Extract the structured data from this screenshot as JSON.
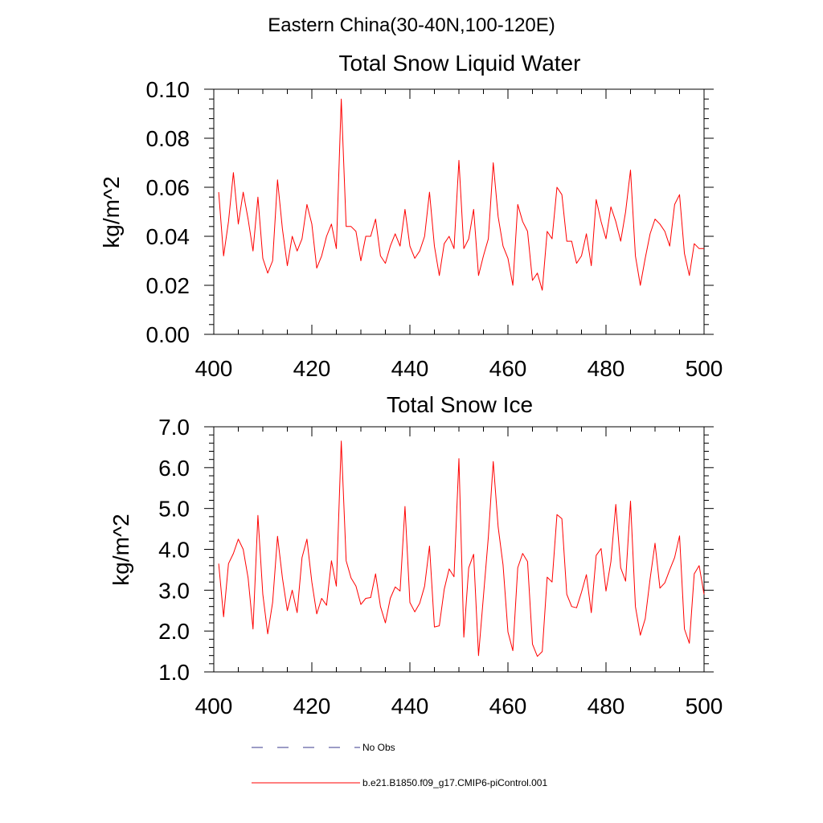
{
  "figure": {
    "title": "Eastern China(30-40N,100-120E)"
  },
  "legend": {
    "entries": [
      {
        "label": "No Obs",
        "style": "dashed",
        "color": "#3a3a8c"
      },
      {
        "label": "b.e21.B1850.f09_g17.CMIP6-piControl.001",
        "style": "solid",
        "color": "#ff0000"
      }
    ]
  },
  "chart_data": [
    {
      "type": "line",
      "title": "Total Snow Liquid Water",
      "xlabel": "",
      "ylabel": "kg/m^2",
      "xlim": [
        400,
        500
      ],
      "ylim": [
        0.0,
        0.1
      ],
      "xticks": [
        400,
        420,
        440,
        460,
        480,
        500
      ],
      "xtick_labels": [
        "400",
        "420",
        "440",
        "460",
        "480",
        "500"
      ],
      "yticks": [
        0.0,
        0.02,
        0.04,
        0.06,
        0.08,
        0.1
      ],
      "ytick_labels": [
        "0.00",
        "0.02",
        "0.04",
        "0.06",
        "0.08",
        "0.10"
      ],
      "grid": false,
      "series": [
        {
          "name": "b.e21.B1850.f09_g17.CMIP6-piControl.001",
          "color": "#ff0000",
          "x": [
            401,
            402,
            403,
            404,
            405,
            406,
            407,
            408,
            409,
            410,
            411,
            412,
            413,
            414,
            415,
            416,
            417,
            418,
            419,
            420,
            421,
            422,
            423,
            424,
            425,
            426,
            427,
            428,
            429,
            430,
            431,
            432,
            433,
            434,
            435,
            436,
            437,
            438,
            439,
            440,
            441,
            442,
            443,
            444,
            445,
            446,
            447,
            448,
            449,
            450,
            451,
            452,
            453,
            454,
            455,
            456,
            457,
            458,
            459,
            460,
            461,
            462,
            463,
            464,
            465,
            466,
            467,
            468,
            469,
            470,
            471,
            472,
            473,
            474,
            475,
            476,
            477,
            478,
            479,
            480,
            481,
            482,
            483,
            484,
            485,
            486,
            487,
            488,
            489,
            490,
            491,
            492,
            493,
            494,
            495,
            496,
            497,
            498,
            499,
            500
          ],
          "values": [
            0.058,
            0.032,
            0.046,
            0.066,
            0.045,
            0.058,
            0.047,
            0.034,
            0.056,
            0.031,
            0.025,
            0.03,
            0.063,
            0.043,
            0.028,
            0.04,
            0.034,
            0.039,
            0.053,
            0.045,
            0.027,
            0.032,
            0.04,
            0.045,
            0.035,
            0.096,
            0.044,
            0.044,
            0.042,
            0.03,
            0.04,
            0.04,
            0.047,
            0.032,
            0.029,
            0.036,
            0.041,
            0.036,
            0.051,
            0.036,
            0.031,
            0.034,
            0.04,
            0.058,
            0.036,
            0.024,
            0.037,
            0.04,
            0.035,
            0.071,
            0.035,
            0.039,
            0.051,
            0.024,
            0.032,
            0.039,
            0.07,
            0.048,
            0.036,
            0.031,
            0.02,
            0.053,
            0.046,
            0.042,
            0.022,
            0.025,
            0.018,
            0.042,
            0.039,
            0.06,
            0.057,
            0.038,
            0.038,
            0.029,
            0.032,
            0.041,
            0.028,
            0.055,
            0.046,
            0.039,
            0.052,
            0.046,
            0.038,
            0.05,
            0.067,
            0.032,
            0.02,
            0.031,
            0.041,
            0.047,
            0.045,
            0.042,
            0.036,
            0.053,
            0.057,
            0.033,
            0.024,
            0.037,
            0.035,
            0.035
          ]
        }
      ]
    },
    {
      "type": "line",
      "title": "Total Snow Ice",
      "xlabel": "",
      "ylabel": "kg/m^2",
      "xlim": [
        400,
        500
      ],
      "ylim": [
        1.0,
        7.0
      ],
      "xticks": [
        400,
        420,
        440,
        460,
        480,
        500
      ],
      "xtick_labels": [
        "400",
        "420",
        "440",
        "460",
        "480",
        "500"
      ],
      "yticks": [
        1.0,
        2.0,
        3.0,
        4.0,
        5.0,
        6.0,
        7.0
      ],
      "ytick_labels": [
        "1.0",
        "2.0",
        "3.0",
        "4.0",
        "5.0",
        "6.0",
        "7.0"
      ],
      "grid": false,
      "series": [
        {
          "name": "b.e21.B1850.f09_g17.CMIP6-piControl.001",
          "color": "#ff0000",
          "x": [
            401,
            402,
            403,
            404,
            405,
            406,
            407,
            408,
            409,
            410,
            411,
            412,
            413,
            414,
            415,
            416,
            417,
            418,
            419,
            420,
            421,
            422,
            423,
            424,
            425,
            426,
            427,
            428,
            429,
            430,
            431,
            432,
            433,
            434,
            435,
            436,
            437,
            438,
            439,
            440,
            441,
            442,
            443,
            444,
            445,
            446,
            447,
            448,
            449,
            450,
            451,
            452,
            453,
            454,
            455,
            456,
            457,
            458,
            459,
            460,
            461,
            462,
            463,
            464,
            465,
            466,
            467,
            468,
            469,
            470,
            471,
            472,
            473,
            474,
            475,
            476,
            477,
            478,
            479,
            480,
            481,
            482,
            483,
            484,
            485,
            486,
            487,
            488,
            489,
            490,
            491,
            492,
            493,
            494,
            495,
            496,
            497,
            498,
            499,
            500
          ],
          "values": [
            3.65,
            2.35,
            3.65,
            3.9,
            4.25,
            4.0,
            3.3,
            2.05,
            4.83,
            2.9,
            1.93,
            2.7,
            4.32,
            3.3,
            2.5,
            3.0,
            2.45,
            3.8,
            4.25,
            3.2,
            2.42,
            2.8,
            2.63,
            3.72,
            3.1,
            6.65,
            3.72,
            3.3,
            3.1,
            2.65,
            2.8,
            2.82,
            3.4,
            2.6,
            2.2,
            2.8,
            3.08,
            2.98,
            5.05,
            2.7,
            2.47,
            2.68,
            3.1,
            4.08,
            2.1,
            2.13,
            3.02,
            3.52,
            3.33,
            6.22,
            1.85,
            3.55,
            3.88,
            1.4,
            2.85,
            4.3,
            6.15,
            4.55,
            3.62,
            1.98,
            1.52,
            3.55,
            3.9,
            3.7,
            1.68,
            1.38,
            1.5,
            3.32,
            3.2,
            4.85,
            4.75,
            2.9,
            2.6,
            2.57,
            2.95,
            3.38,
            2.45,
            3.85,
            4.02,
            2.98,
            3.7,
            5.1,
            3.55,
            3.22,
            5.18,
            2.6,
            1.9,
            2.3,
            3.28,
            4.15,
            3.05,
            3.18,
            3.5,
            3.8,
            4.33,
            2.05,
            1.7,
            3.4,
            3.6,
            2.9
          ]
        }
      ]
    }
  ]
}
